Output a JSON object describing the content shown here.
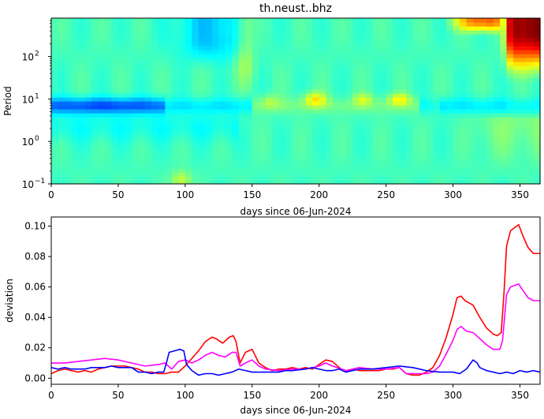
{
  "chart_data": [
    {
      "type": "heatmap",
      "title": "th.neust..bhz",
      "xlabel": "days since 06-Jun-2024",
      "ylabel": "Period",
      "xlim": [
        0,
        365
      ],
      "ylim": [
        0.1,
        800
      ],
      "yscale": "log",
      "x_ticks": [
        0,
        50,
        100,
        150,
        200,
        250,
        300,
        350
      ],
      "x_tick_labels": [
        "0",
        "50",
        "100",
        "150",
        "200",
        "250",
        "300",
        "350"
      ],
      "y_ticks": [
        0.1,
        1,
        10,
        100
      ],
      "y_tick_labels": [
        "10",
        "10",
        "10",
        "10"
      ],
      "y_tick_exponents": [
        "−1",
        "0",
        "1",
        "2"
      ],
      "colormap": "jet",
      "notes": [
        "normalized deviation values 0..1; dominant background ~0.4 (green)"
      ]
    },
    {
      "type": "line",
      "title": "",
      "xlabel": "days since 06-Jun-2024",
      "ylabel": "deviation",
      "xlim": [
        0,
        365
      ],
      "ylim": [
        -0.004,
        0.106
      ],
      "x_ticks": [
        0,
        50,
        100,
        150,
        200,
        250,
        300,
        350
      ],
      "x_tick_labels": [
        "0",
        "50",
        "100",
        "150",
        "200",
        "250",
        "300",
        "350"
      ],
      "y_ticks": [
        0.0,
        0.02,
        0.04,
        0.06,
        0.08,
        0.1
      ],
      "y_tick_labels": [
        "0.00",
        "0.02",
        "0.04",
        "0.06",
        "0.08",
        "0.10"
      ],
      "series": [
        {
          "color": "#ff0000",
          "points": [
            [
              0,
              0.003
            ],
            [
              5,
              0.005
            ],
            [
              10,
              0.006
            ],
            [
              15,
              0.005
            ],
            [
              20,
              0.004
            ],
            [
              25,
              0.005
            ],
            [
              30,
              0.004
            ],
            [
              35,
              0.006
            ],
            [
              40,
              0.007
            ],
            [
              45,
              0.008
            ],
            [
              50,
              0.008
            ],
            [
              55,
              0.008
            ],
            [
              60,
              0.007
            ],
            [
              65,
              0.006
            ],
            [
              70,
              0.004
            ],
            [
              75,
              0.004
            ],
            [
              80,
              0.003
            ],
            [
              85,
              0.003
            ],
            [
              90,
              0.004
            ],
            [
              95,
              0.004
            ],
            [
              100,
              0.008
            ],
            [
              105,
              0.013
            ],
            [
              110,
              0.018
            ],
            [
              115,
              0.024
            ],
            [
              120,
              0.027
            ],
            [
              123,
              0.026
            ],
            [
              128,
              0.023
            ],
            [
              133,
              0.027
            ],
            [
              136,
              0.028
            ],
            [
              138,
              0.024
            ],
            [
              141,
              0.01
            ],
            [
              145,
              0.017
            ],
            [
              150,
              0.019
            ],
            [
              155,
              0.01
            ],
            [
              160,
              0.007
            ],
            [
              165,
              0.005
            ],
            [
              170,
              0.006
            ],
            [
              175,
              0.006
            ],
            [
              180,
              0.007
            ],
            [
              185,
              0.006
            ],
            [
              190,
              0.007
            ],
            [
              195,
              0.006
            ],
            [
              200,
              0.009
            ],
            [
              205,
              0.012
            ],
            [
              210,
              0.011
            ],
            [
              215,
              0.007
            ],
            [
              220,
              0.004
            ],
            [
              225,
              0.006
            ],
            [
              230,
              0.005
            ],
            [
              235,
              0.005
            ],
            [
              240,
              0.005
            ],
            [
              245,
              0.005
            ],
            [
              250,
              0.006
            ],
            [
              255,
              0.006
            ],
            [
              260,
              0.007
            ],
            [
              265,
              0.003
            ],
            [
              270,
              0.002
            ],
            [
              275,
              0.002
            ],
            [
              280,
              0.004
            ],
            [
              285,
              0.007
            ],
            [
              290,
              0.015
            ],
            [
              295,
              0.027
            ],
            [
              300,
              0.042
            ],
            [
              303,
              0.053
            ],
            [
              306,
              0.054
            ],
            [
              309,
              0.051
            ],
            [
              315,
              0.048
            ],
            [
              320,
              0.04
            ],
            [
              325,
              0.033
            ],
            [
              330,
              0.029
            ],
            [
              333,
              0.028
            ],
            [
              336,
              0.03
            ],
            [
              338,
              0.055
            ],
            [
              340,
              0.087
            ],
            [
              343,
              0.097
            ],
            [
              346,
              0.099
            ],
            [
              349,
              0.101
            ],
            [
              352,
              0.094
            ],
            [
              356,
              0.086
            ],
            [
              360,
              0.082
            ],
            [
              365,
              0.082
            ]
          ]
        },
        {
          "color": "#ff00ff",
          "points": [
            [
              0,
              0.01
            ],
            [
              10,
              0.01
            ],
            [
              20,
              0.011
            ],
            [
              30,
              0.012
            ],
            [
              40,
              0.013
            ],
            [
              50,
              0.012
            ],
            [
              60,
              0.01
            ],
            [
              70,
              0.008
            ],
            [
              80,
              0.009
            ],
            [
              85,
              0.01
            ],
            [
              90,
              0.006
            ],
            [
              95,
              0.011
            ],
            [
              100,
              0.012
            ],
            [
              105,
              0.01
            ],
            [
              110,
              0.012
            ],
            [
              115,
              0.015
            ],
            [
              120,
              0.017
            ],
            [
              125,
              0.015
            ],
            [
              130,
              0.014
            ],
            [
              135,
              0.017
            ],
            [
              138,
              0.017
            ],
            [
              141,
              0.008
            ],
            [
              145,
              0.01
            ],
            [
              150,
              0.012
            ],
            [
              155,
              0.008
            ],
            [
              160,
              0.006
            ],
            [
              170,
              0.005
            ],
            [
              180,
              0.006
            ],
            [
              190,
              0.006
            ],
            [
              200,
              0.008
            ],
            [
              205,
              0.01
            ],
            [
              210,
              0.008
            ],
            [
              220,
              0.005
            ],
            [
              230,
              0.007
            ],
            [
              240,
              0.006
            ],
            [
              250,
              0.006
            ],
            [
              260,
              0.007
            ],
            [
              265,
              0.003
            ],
            [
              270,
              0.003
            ],
            [
              280,
              0.003
            ],
            [
              285,
              0.004
            ],
            [
              290,
              0.008
            ],
            [
              295,
              0.016
            ],
            [
              300,
              0.025
            ],
            [
              303,
              0.032
            ],
            [
              306,
              0.034
            ],
            [
              310,
              0.031
            ],
            [
              315,
              0.03
            ],
            [
              320,
              0.026
            ],
            [
              325,
              0.022
            ],
            [
              330,
              0.019
            ],
            [
              335,
              0.019
            ],
            [
              337,
              0.025
            ],
            [
              340,
              0.055
            ],
            [
              343,
              0.06
            ],
            [
              346,
              0.061
            ],
            [
              349,
              0.062
            ],
            [
              352,
              0.058
            ],
            [
              356,
              0.053
            ],
            [
              360,
              0.051
            ],
            [
              365,
              0.051
            ]
          ]
        },
        {
          "color": "#0000ff",
          "points": [
            [
              0,
              0.007
            ],
            [
              5,
              0.006
            ],
            [
              10,
              0.007
            ],
            [
              15,
              0.006
            ],
            [
              20,
              0.006
            ],
            [
              25,
              0.006
            ],
            [
              30,
              0.007
            ],
            [
              35,
              0.007
            ],
            [
              40,
              0.007
            ],
            [
              45,
              0.008
            ],
            [
              50,
              0.007
            ],
            [
              55,
              0.007
            ],
            [
              60,
              0.007
            ],
            [
              65,
              0.004
            ],
            [
              70,
              0.004
            ],
            [
              75,
              0.003
            ],
            [
              80,
              0.004
            ],
            [
              84,
              0.004
            ],
            [
              86,
              0.01
            ],
            [
              88,
              0.017
            ],
            [
              92,
              0.018
            ],
            [
              96,
              0.019
            ],
            [
              99,
              0.018
            ],
            [
              101,
              0.009
            ],
            [
              105,
              0.005
            ],
            [
              110,
              0.002
            ],
            [
              115,
              0.003
            ],
            [
              120,
              0.003
            ],
            [
              125,
              0.002
            ],
            [
              130,
              0.003
            ],
            [
              135,
              0.004
            ],
            [
              140,
              0.006
            ],
            [
              145,
              0.005
            ],
            [
              150,
              0.004
            ],
            [
              160,
              0.004
            ],
            [
              165,
              0.004
            ],
            [
              170,
              0.004
            ],
            [
              175,
              0.005
            ],
            [
              180,
              0.005
            ],
            [
              190,
              0.006
            ],
            [
              195,
              0.007
            ],
            [
              200,
              0.006
            ],
            [
              205,
              0.005
            ],
            [
              210,
              0.005
            ],
            [
              215,
              0.006
            ],
            [
              220,
              0.004
            ],
            [
              230,
              0.006
            ],
            [
              240,
              0.006
            ],
            [
              250,
              0.007
            ],
            [
              260,
              0.008
            ],
            [
              270,
              0.007
            ],
            [
              280,
              0.005
            ],
            [
              290,
              0.004
            ],
            [
              300,
              0.004
            ],
            [
              305,
              0.003
            ],
            [
              310,
              0.006
            ],
            [
              315,
              0.012
            ],
            [
              318,
              0.01
            ],
            [
              320,
              0.007
            ],
            [
              325,
              0.005
            ],
            [
              330,
              0.004
            ],
            [
              335,
              0.003
            ],
            [
              340,
              0.004
            ],
            [
              345,
              0.003
            ],
            [
              350,
              0.005
            ],
            [
              355,
              0.004
            ],
            [
              360,
              0.005
            ],
            [
              365,
              0.004
            ]
          ]
        }
      ]
    }
  ]
}
